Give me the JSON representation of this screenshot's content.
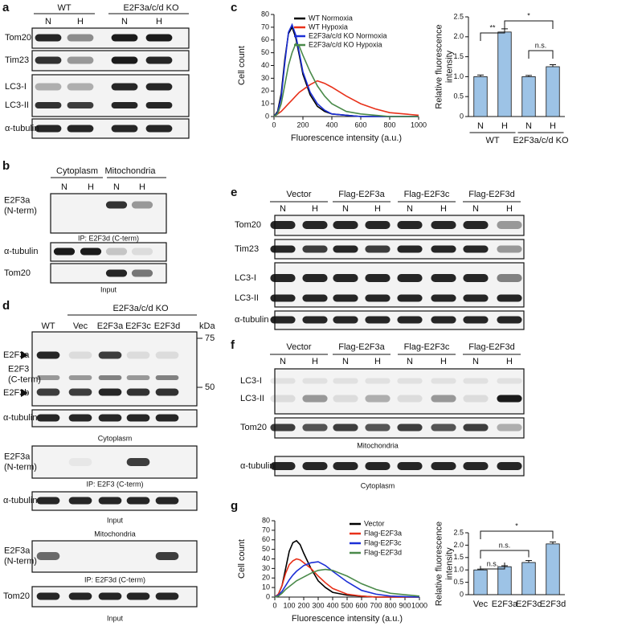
{
  "blots": [
    {
      "panel": "a",
      "groups": [
        "WT",
        "E2F3a/c/d KO"
      ],
      "lanes": [
        "N",
        "H",
        "N",
        "H"
      ],
      "rows": [
        "Tom20",
        "Tim23",
        "LC3-I",
        "LC3-II",
        "α-tubulin"
      ]
    },
    {
      "panel": "b",
      "groups": [
        "Cytoplasm",
        "Mitochondria"
      ],
      "lanes": [
        "N",
        "H",
        "N",
        "H"
      ],
      "rows": [
        [
          "E2F3a",
          "(N-term)"
        ],
        "α-tubulin",
        "Tom20"
      ],
      "captions": [
        "IP: E2F3d (C-term)",
        "Input"
      ]
    },
    {
      "panel": "d",
      "group": "E2F3a/c/d KO",
      "unit": "kDa",
      "lanes": [
        "WT",
        "Vec",
        "E2F3a",
        "E2F3c",
        "E2F3d"
      ],
      "markers": [
        75,
        50
      ],
      "rows": [
        "E2F3a",
        [
          "E2F3",
          "(C-term)"
        ],
        "E2F3b",
        "α-tubulin",
        [
          "E2F3a",
          "(N-term)"
        ],
        "α-tubulin",
        [
          "E2F3a",
          "(N-term)"
        ],
        "Tom20"
      ],
      "captions": [
        "Cytoplasm",
        "IP: E2F3 (C-term)",
        "Input",
        "Mitochondria",
        "IP: E2F3d (C-term)",
        "Input"
      ]
    },
    {
      "panel": "e",
      "groups": [
        "Vector",
        "Flag-E2F3a",
        "Flag-E2F3c",
        "Flag-E2F3d"
      ],
      "lanes": [
        "N",
        "H",
        "N",
        "H",
        "N",
        "H",
        "N",
        "H"
      ],
      "rows": [
        "Tom20",
        "Tim23",
        "LC3-I",
        "LC3-II",
        "α-tubulin"
      ]
    },
    {
      "panel": "f",
      "groups": [
        "Vector",
        "Flag-E2F3a",
        "Flag-E2F3c",
        "Flag-E2F3d"
      ],
      "lanes": [
        "N",
        "H",
        "N",
        "H",
        "N",
        "H",
        "N",
        "H"
      ],
      "rows": [
        "LC3-I",
        "LC3-II",
        "Tom20",
        "α-tubulin"
      ],
      "captions": [
        "Mitochondria",
        "Cytoplasm"
      ]
    }
  ],
  "chart_data": [
    {
      "type": "line",
      "panel": "c",
      "xlabel": "Fluorescence intensity (a.u.)",
      "ylabel": "Cell count",
      "x": [
        0,
        25,
        50,
        75,
        100,
        125,
        150,
        175,
        200,
        250,
        300,
        350,
        400,
        500,
        600,
        700,
        800,
        1000
      ],
      "xlim": [
        0,
        1000
      ],
      "xticks": [
        0,
        200,
        400,
        600,
        800,
        1000
      ],
      "ylim": [
        0,
        80
      ],
      "yticks": [
        0,
        10,
        20,
        30,
        40,
        50,
        60,
        70,
        80
      ],
      "series": [
        {
          "name": "WT Normoxia",
          "color": "#000000",
          "values": [
            0,
            4,
            18,
            45,
            65,
            70,
            62,
            48,
            33,
            17,
            8,
            4,
            2,
            1,
            0,
            0,
            0,
            0
          ]
        },
        {
          "name": "WT Hypoxia",
          "color": "#e8311a",
          "values": [
            0,
            2,
            4,
            7,
            10,
            13,
            16,
            19,
            21,
            25,
            28,
            26,
            23,
            16,
            10,
            6,
            3,
            1
          ]
        },
        {
          "name": "E2F3a/c/d KO Normoxia",
          "color": "#1c2fd6",
          "values": [
            0,
            3,
            15,
            42,
            66,
            72,
            64,
            50,
            35,
            19,
            10,
            5,
            2,
            1,
            0,
            0,
            0,
            0
          ]
        },
        {
          "name": "E2F3a/c/d KO Hypoxia",
          "color": "#4a8a4a",
          "values": [
            0,
            2,
            10,
            25,
            40,
            50,
            57,
            55,
            48,
            35,
            24,
            16,
            10,
            4,
            2,
            1,
            0,
            0
          ]
        }
      ]
    },
    {
      "type": "bar",
      "ylabel": [
        "Relative fluorescence",
        "intensity"
      ],
      "categories": [
        "N",
        "H",
        "N",
        "H"
      ],
      "groups": [
        "WT",
        "E2F3a/c/d KO"
      ],
      "values": [
        1.0,
        2.12,
        1.0,
        1.25
      ],
      "errors": [
        0.04,
        0.08,
        0.03,
        0.05
      ],
      "color": "#9dc3e6",
      "ylim": [
        0,
        2.5
      ],
      "yticks": [
        0,
        0.5,
        {
          "value": 1,
          "label": "1.0"
        },
        1.5,
        {
          "value": 2,
          "label": "2.0"
        },
        2.5
      ],
      "annotations": [
        "**",
        "*",
        "n.s."
      ]
    },
    {
      "type": "line",
      "panel": "g",
      "xlabel": "Fluorescence intensity (a.u.)",
      "ylabel": "Cell count",
      "x": [
        0,
        25,
        50,
        75,
        100,
        125,
        150,
        175,
        200,
        250,
        300,
        350,
        400,
        500,
        600,
        700,
        800,
        1000
      ],
      "xlim": [
        0,
        1000
      ],
      "xticks": [
        0,
        100,
        200,
        300,
        400,
        500,
        600,
        700,
        800,
        900,
        1000
      ],
      "ylim": [
        0,
        80
      ],
      "yticks": [
        0,
        10,
        20,
        30,
        40,
        50,
        60,
        70,
        80
      ],
      "series": [
        {
          "name": "Vector",
          "color": "#000000",
          "values": [
            0,
            3,
            12,
            30,
            48,
            57,
            59,
            55,
            46,
            30,
            17,
            10,
            5,
            2,
            1,
            0,
            0,
            0
          ]
        },
        {
          "name": "Flag-E2F3a",
          "color": "#e8311a",
          "values": [
            0,
            3,
            12,
            25,
            34,
            38,
            40,
            39,
            36,
            30,
            22,
            15,
            9,
            3,
            1,
            0,
            0,
            0
          ]
        },
        {
          "name": "Flag-E2F3c",
          "color": "#1c2fd6",
          "values": [
            0,
            2,
            6,
            12,
            18,
            23,
            27,
            30,
            33,
            36,
            37,
            33,
            27,
            16,
            7,
            3,
            1,
            0
          ]
        },
        {
          "name": "Flag-E2F3d",
          "color": "#4a8a4a",
          "values": [
            0,
            1,
            4,
            8,
            11,
            14,
            17,
            19,
            21,
            25,
            28,
            29,
            28,
            22,
            14,
            8,
            4,
            1
          ]
        }
      ]
    },
    {
      "type": "bar",
      "ylabel": [
        "Relative fluorescence",
        "intensity"
      ],
      "categories": [
        "Vec",
        "E2F3a",
        "E2F3c",
        "E2F3d"
      ],
      "values": [
        1.0,
        1.13,
        1.3,
        2.05
      ],
      "errors": [
        0.03,
        0.04,
        0.08,
        0.08
      ],
      "color": "#9dc3e6",
      "ylim": [
        0,
        2.5
      ],
      "yticks": [
        0,
        0.5,
        {
          "value": 1,
          "label": "1.0"
        },
        1.5,
        {
          "value": 2,
          "label": "2.0"
        },
        2.5
      ],
      "annotations": [
        "n.s.",
        "n.s.",
        "*"
      ]
    }
  ]
}
